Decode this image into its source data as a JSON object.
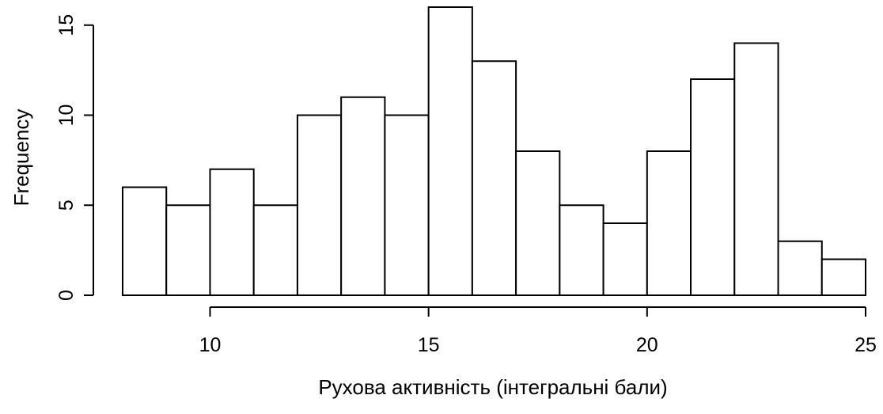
{
  "chart_data": {
    "type": "bar",
    "title": "",
    "xlabel": "Рухова активність (інтегральні бали)",
    "ylabel": "Frequency",
    "bin_edges": [
      8,
      9,
      10,
      11,
      12,
      13,
      14,
      15,
      16,
      17,
      18,
      19,
      20,
      21,
      22,
      23,
      24,
      25
    ],
    "values": [
      6,
      5,
      7,
      5,
      10,
      11,
      10,
      16,
      13,
      8,
      5,
      4,
      8,
      12,
      14,
      3,
      2
    ],
    "xlim": [
      8,
      25
    ],
    "ylim": [
      0,
      16
    ],
    "x_ticks": [
      10,
      15,
      20,
      25
    ],
    "y_ticks": [
      0,
      5,
      10,
      15
    ],
    "grid": false,
    "legend": "none"
  }
}
